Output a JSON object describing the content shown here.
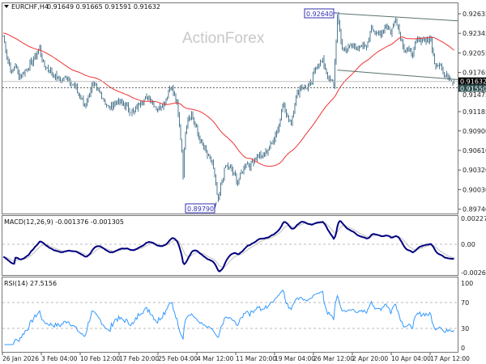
{
  "header": {
    "symbol": "EURCHF,H4",
    "ohlc": "0.91649 0.91665 0.91591 0.91632"
  },
  "watermark": "ActionForex",
  "colors": {
    "bars": "#4f7a90",
    "ma": "#ee3333",
    "macd": "#000080",
    "signal": "#c0c0c0",
    "rsi": "#3399ff",
    "channel": "#5a7070",
    "label_box": "#3030b0"
  },
  "chart_data": [
    {
      "type": "ohlc-bar",
      "symbol": "EURCHF",
      "timeframe": "H4",
      "ylim": [
        0.8974,
        0.9275
      ],
      "y_ticks": [
        "0.92635",
        "0.92345",
        "0.92055",
        "0.91765",
        "0.91475",
        "0.91185",
        "0.90900",
        "0.90610",
        "0.90320",
        "0.90030",
        "0.89740"
      ],
      "x_ticks": [
        "26 Jan 2026",
        "3 Feb 04:00",
        "10 Feb 12:00",
        "17 Feb 20:00",
        "25 Feb 04:00",
        "4 Mar 12:00",
        "11 Mar 20:00",
        "19 Mar 04:00",
        "26 Mar 12:00",
        "2 Apr 20:00",
        "10 Apr 04:00",
        "17 Apr 12:00"
      ],
      "close_path_bar_index_price": [
        [
          0,
          0.923
        ],
        [
          3,
          0.92
        ],
        [
          7,
          0.9176
        ],
        [
          10,
          0.9188
        ],
        [
          13,
          0.917
        ],
        [
          20,
          0.9182
        ],
        [
          30,
          0.9212
        ],
        [
          33,
          0.9188
        ],
        [
          40,
          0.9176
        ],
        [
          47,
          0.9164
        ],
        [
          53,
          0.917
        ],
        [
          60,
          0.9152
        ],
        [
          67,
          0.9128
        ],
        [
          70,
          0.914
        ],
        [
          73,
          0.9158
        ],
        [
          80,
          0.9146
        ],
        [
          87,
          0.9122
        ],
        [
          93,
          0.9134
        ],
        [
          100,
          0.9128
        ],
        [
          107,
          0.9116
        ],
        [
          113,
          0.9134
        ],
        [
          120,
          0.914
        ],
        [
          127,
          0.9122
        ],
        [
          133,
          0.9134
        ],
        [
          138,
          0.9158
        ],
        [
          143,
          0.9128
        ],
        [
          147,
          0.9062
        ],
        [
          148,
          0.9026
        ],
        [
          150,
          0.9092
        ],
        [
          152,
          0.911
        ],
        [
          155,
          0.9116
        ],
        [
          160,
          0.9086
        ],
        [
          167,
          0.9056
        ],
        [
          172,
          0.9044
        ],
        [
          175,
          0.9008
        ],
        [
          177,
          0.8984
        ],
        [
          179,
          0.9008
        ],
        [
          183,
          0.9038
        ],
        [
          188,
          0.9032
        ],
        [
          193,
          0.9014
        ],
        [
          200,
          0.9044
        ],
        [
          203,
          0.9038
        ],
        [
          210,
          0.9056
        ],
        [
          213,
          0.905
        ],
        [
          220,
          0.9068
        ],
        [
          223,
          0.908
        ],
        [
          227,
          0.9098
        ],
        [
          230,
          0.9134
        ],
        [
          233,
          0.911
        ],
        [
          237,
          0.9104
        ],
        [
          240,
          0.9134
        ],
        [
          245,
          0.9158
        ],
        [
          248,
          0.9152
        ],
        [
          253,
          0.9158
        ],
        [
          258,
          0.9188
        ],
        [
          263,
          0.9194
        ],
        [
          267,
          0.917
        ],
        [
          272,
          0.9158
        ],
        [
          275,
          0.926
        ],
        [
          279,
          0.9212
        ],
        [
          283,
          0.9212
        ],
        [
          288,
          0.9218
        ],
        [
          293,
          0.9212
        ],
        [
          300,
          0.9218
        ],
        [
          303,
          0.9248
        ],
        [
          307,
          0.923
        ],
        [
          311,
          0.9236
        ],
        [
          315,
          0.9248
        ],
        [
          319,
          0.9236
        ],
        [
          323,
          0.9258
        ],
        [
          327,
          0.923
        ],
        [
          330,
          0.9212
        ],
        [
          337,
          0.9206
        ],
        [
          341,
          0.9224
        ],
        [
          347,
          0.9226
        ],
        [
          352,
          0.9224
        ],
        [
          355,
          0.9188
        ],
        [
          360,
          0.919
        ],
        [
          363,
          0.917
        ],
        [
          367,
          0.917
        ],
        [
          371,
          0.91632
        ]
      ],
      "moving_average": {
        "color": "red"
      },
      "annotations": {
        "high_label": "0.92640",
        "low_label": "0.89790",
        "current_price": "0.91632",
        "dashed_level": "0.91550"
      },
      "channel": {
        "upper": [
          0.9264,
          0.9253
        ],
        "lower": [
          0.918,
          0.9166
        ]
      }
    },
    {
      "type": "line",
      "title": "MACD(12,26,9) -0.001376 -0.001305",
      "ylim": [
        -0.002693,
        0.002277
      ],
      "y_ticks": [
        "0.002277",
        "0.00",
        "-0.002693"
      ],
      "last": {
        "macd": -0.001376,
        "signal": -0.001305
      }
    },
    {
      "type": "line",
      "title": "RSI(14) 27.5156",
      "ylim": [
        0,
        100
      ],
      "y_ticks": [
        "100",
        "70",
        "30",
        "0"
      ],
      "levels": [
        70,
        30
      ],
      "last": 27.5156
    }
  ]
}
